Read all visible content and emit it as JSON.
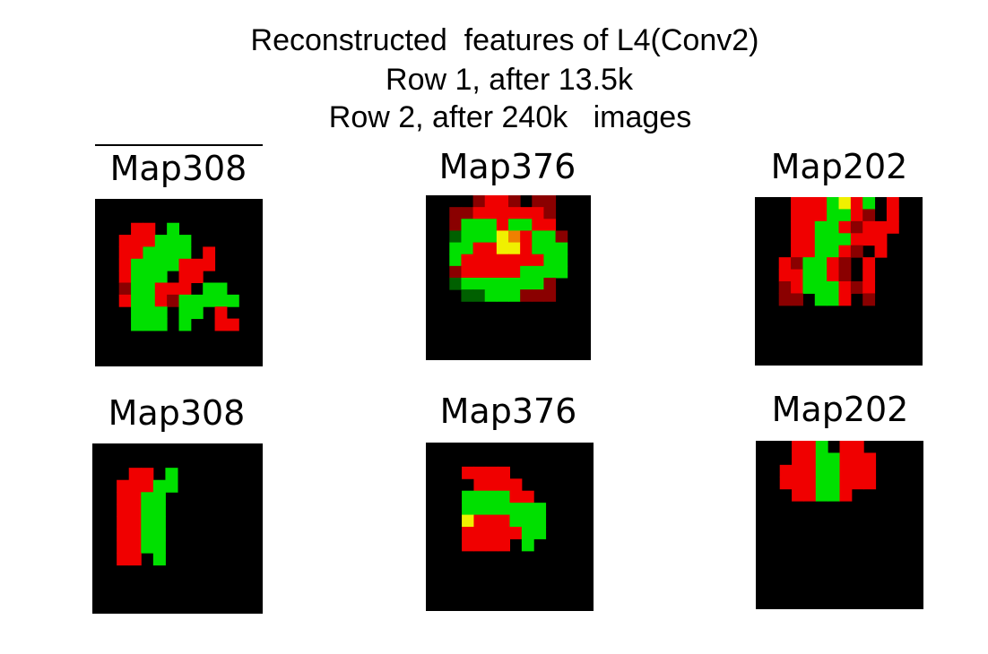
{
  "title": [
    "Reconstructed  features of L4(Conv2)",
    "Row 1, after 13.5k",
    "Row 2, after 240k   images"
  ],
  "panels": [
    {
      "label": "Map308"
    },
    {
      "label": "Map376"
    },
    {
      "label": "Map202"
    },
    {
      "label": "Map308"
    },
    {
      "label": "Map376"
    },
    {
      "label": "Map202"
    }
  ]
}
